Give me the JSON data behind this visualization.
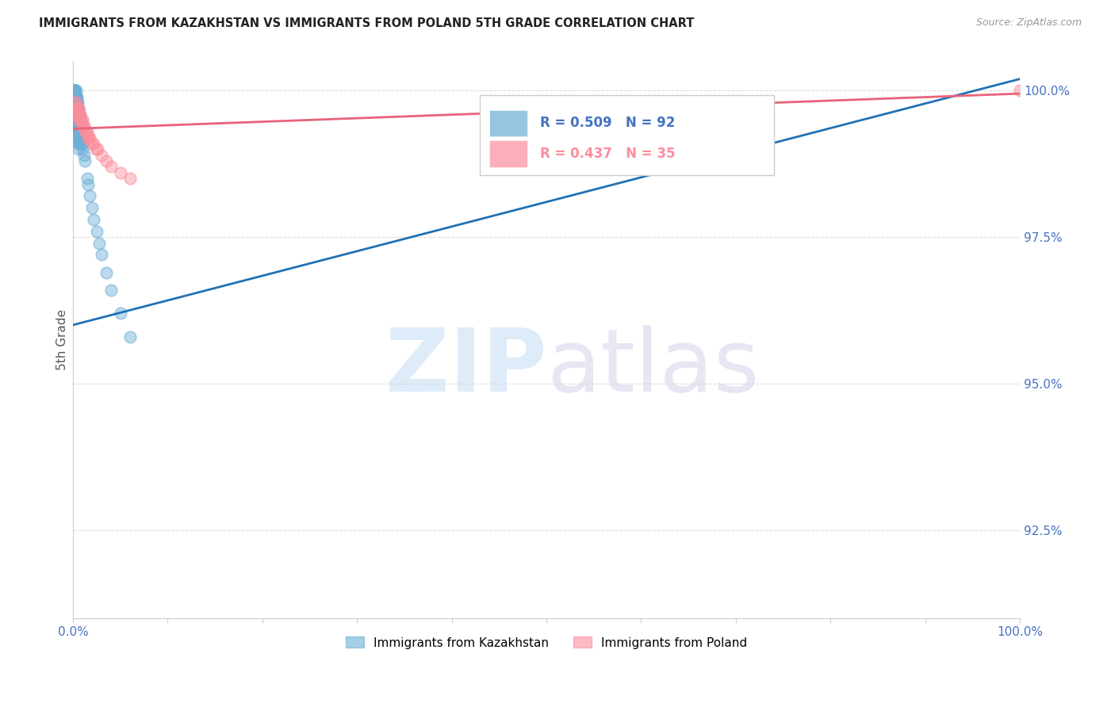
{
  "title": "IMMIGRANTS FROM KAZAKHSTAN VS IMMIGRANTS FROM POLAND 5TH GRADE CORRELATION CHART",
  "source": "Source: ZipAtlas.com",
  "ylabel": "5th Grade",
  "xlim": [
    0.0,
    1.0
  ],
  "ylim": [
    0.91,
    1.005
  ],
  "y_ticks": [
    0.925,
    0.95,
    0.975,
    1.0
  ],
  "y_tick_labels": [
    "92.5%",
    "95.0%",
    "97.5%",
    "100.0%"
  ],
  "kazakhstan_color": "#6baed6",
  "poland_color": "#fc8d9c",
  "kazakhstan_line_color": "#2171b5",
  "poland_line_color": "#e8637a",
  "R_kazakhstan": 0.509,
  "N_kazakhstan": 92,
  "R_poland": 0.437,
  "N_poland": 35,
  "background_color": "#ffffff",
  "grid_color": "#dddddd",
  "tick_label_color": "#4472c4",
  "kazakhstan_points_x": [
    0.001,
    0.001,
    0.001,
    0.001,
    0.001,
    0.001,
    0.001,
    0.002,
    0.002,
    0.002,
    0.002,
    0.002,
    0.002,
    0.002,
    0.002,
    0.002,
    0.002,
    0.002,
    0.002,
    0.003,
    0.003,
    0.003,
    0.003,
    0.003,
    0.003,
    0.003,
    0.003,
    0.003,
    0.003,
    0.003,
    0.003,
    0.003,
    0.004,
    0.004,
    0.004,
    0.004,
    0.004,
    0.004,
    0.004,
    0.004,
    0.004,
    0.004,
    0.004,
    0.004,
    0.004,
    0.005,
    0.005,
    0.005,
    0.005,
    0.005,
    0.005,
    0.005,
    0.005,
    0.005,
    0.005,
    0.006,
    0.006,
    0.006,
    0.006,
    0.006,
    0.006,
    0.006,
    0.006,
    0.007,
    0.007,
    0.007,
    0.007,
    0.007,
    0.007,
    0.008,
    0.008,
    0.008,
    0.008,
    0.009,
    0.009,
    0.01,
    0.01,
    0.011,
    0.012,
    0.013,
    0.015,
    0.016,
    0.018,
    0.02,
    0.022,
    0.025,
    0.028,
    0.03,
    0.035,
    0.04,
    0.05,
    0.06
  ],
  "kazakhstan_points_y": [
    1.0,
    1.0,
    1.0,
    1.0,
    1.0,
    1.0,
    0.999,
    1.0,
    1.0,
    1.0,
    1.0,
    0.999,
    0.999,
    0.999,
    0.998,
    0.998,
    0.998,
    0.997,
    0.997,
    1.0,
    0.999,
    0.999,
    0.998,
    0.998,
    0.997,
    0.997,
    0.996,
    0.996,
    0.996,
    0.995,
    0.995,
    0.994,
    0.999,
    0.998,
    0.998,
    0.997,
    0.997,
    0.996,
    0.996,
    0.995,
    0.995,
    0.994,
    0.994,
    0.993,
    0.993,
    0.998,
    0.997,
    0.997,
    0.996,
    0.996,
    0.995,
    0.994,
    0.994,
    0.993,
    0.992,
    0.997,
    0.996,
    0.995,
    0.994,
    0.993,
    0.992,
    0.991,
    0.99,
    0.996,
    0.995,
    0.994,
    0.993,
    0.992,
    0.991,
    0.995,
    0.993,
    0.992,
    0.991,
    0.993,
    0.991,
    0.992,
    0.99,
    0.991,
    0.989,
    0.988,
    0.985,
    0.984,
    0.982,
    0.98,
    0.978,
    0.976,
    0.974,
    0.972,
    0.969,
    0.966,
    0.962,
    0.958
  ],
  "poland_points_x": [
    0.002,
    0.002,
    0.003,
    0.003,
    0.004,
    0.004,
    0.005,
    0.005,
    0.006,
    0.006,
    0.007,
    0.007,
    0.008,
    0.008,
    0.009,
    0.01,
    0.01,
    0.011,
    0.012,
    0.013,
    0.014,
    0.015,
    0.016,
    0.017,
    0.018,
    0.02,
    0.022,
    0.024,
    0.026,
    0.03,
    0.035,
    0.04,
    0.05,
    0.06,
    1.0
  ],
  "poland_points_y": [
    0.998,
    0.997,
    0.998,
    0.997,
    0.997,
    0.996,
    0.997,
    0.996,
    0.997,
    0.996,
    0.996,
    0.995,
    0.996,
    0.995,
    0.995,
    0.995,
    0.994,
    0.994,
    0.994,
    0.993,
    0.993,
    0.993,
    0.992,
    0.992,
    0.992,
    0.991,
    0.991,
    0.99,
    0.99,
    0.989,
    0.988,
    0.987,
    0.986,
    0.985,
    1.0
  ],
  "kaz_line_x": [
    0.0,
    1.0
  ],
  "kaz_line_y": [
    0.96,
    1.002
  ],
  "pol_line_x": [
    0.0,
    1.0
  ],
  "pol_line_y": [
    0.9935,
    0.9995
  ]
}
